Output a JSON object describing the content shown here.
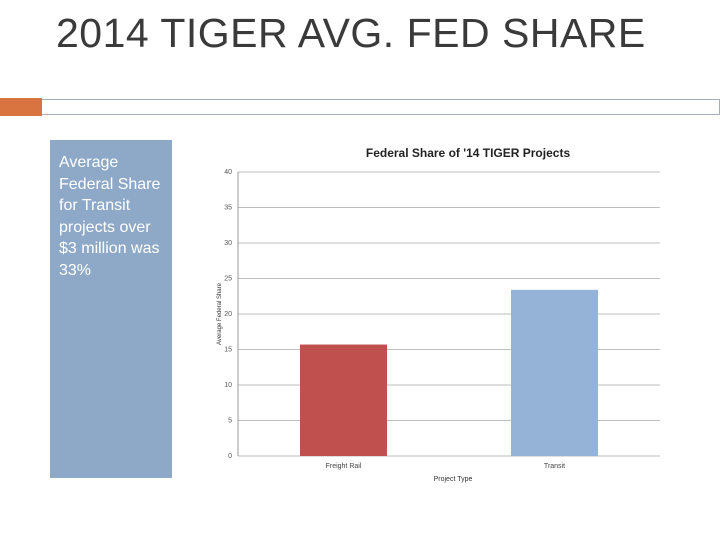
{
  "slide": {
    "title": "2014 TIGER AVG. FED SHARE",
    "callout": "Average Federal Share for Transit projects over $3 million was 33%"
  },
  "colors": {
    "accent": "#d9733f",
    "callout_bg": "#8ea9c8",
    "freight_rail_bar": "#c0504d",
    "transit_bar": "#95b3d7"
  },
  "chart_data": {
    "type": "bar",
    "title": "Federal Share of '14 TIGER Projects",
    "xlabel": "Project Type",
    "ylabel": "Average Federal Share",
    "categories": [
      "Freight Rail",
      "Transit"
    ],
    "values": [
      15.7,
      23.4
    ],
    "bar_colors": [
      "#c0504d",
      "#95b3d7"
    ],
    "ylim": [
      0,
      40
    ],
    "yticks": [
      "0",
      "5",
      "10",
      "15",
      "20",
      "25",
      "30",
      "35",
      "40"
    ],
    "grid": true,
    "legend": "none"
  }
}
